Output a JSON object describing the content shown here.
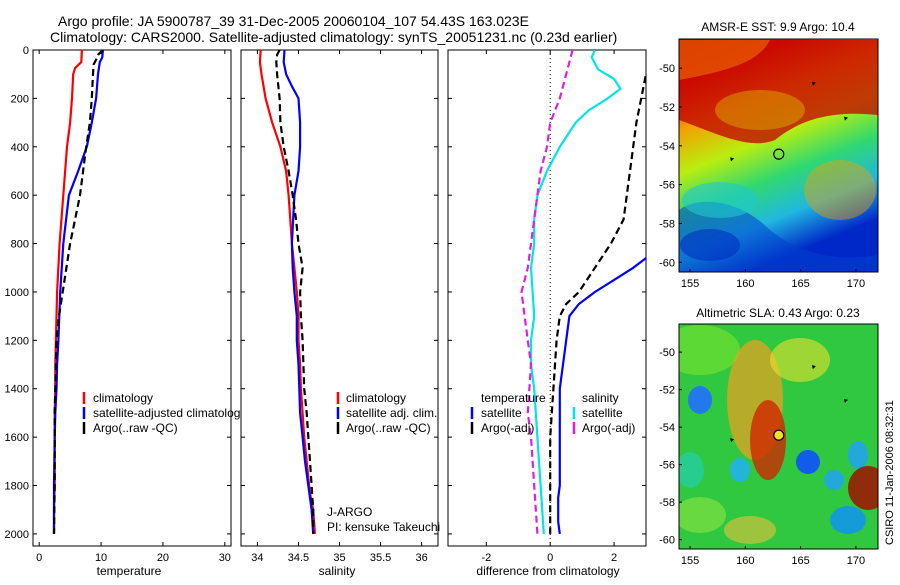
{
  "header": {
    "line1": "Argo profile: JA 5900787_39 31-Dec-2005 20060104_107 54.43S 163.023E",
    "line2": "Climatology: CARS2000. Satellite-adjusted climatology: synTS_20051231.nc (0.23d earlier)"
  },
  "side_credit": "CSIRO 11-Jan-2006 08:32:31",
  "colors": {
    "climatology": "#ff0000",
    "satellite": "#0000ff",
    "argo": "#000000",
    "salinity_satellite": "#00e5e5",
    "salinity_argo": "#e01ee0"
  },
  "chart_data": [
    {
      "type": "line",
      "panel": "temperature",
      "xlabel": "temperature",
      "ylabel": "",
      "xlim": [
        -1,
        31
      ],
      "ylim": [
        2050,
        0
      ],
      "yticks": [
        0,
        200,
        400,
        600,
        800,
        1000,
        1200,
        1400,
        1600,
        1800,
        2000
      ],
      "xticks": [
        0,
        10,
        20,
        30
      ],
      "legend": [
        "climatology",
        "satellite-adjusted climatology",
        "Argo(..raw -QC)"
      ],
      "legend_visible": [
        "climatology",
        "satellite-adjusted climatolog",
        "Argo(..raw -QC)"
      ],
      "series": [
        {
          "name": "climatology",
          "style": "solid",
          "color": "#ff0000",
          "x": [
            6.9,
            6.8,
            5.8,
            5.5,
            5.3,
            5.0,
            4.5,
            3.9,
            3.3,
            2.9,
            2.7,
            2.6,
            2.6,
            2.5,
            2.5,
            2.5,
            2.4,
            2.4
          ],
          "y": [
            0,
            50,
            75,
            100,
            200,
            300,
            400,
            600,
            800,
            1000,
            1200,
            1300,
            1400,
            1500,
            1600,
            1800,
            1900,
            2000
          ]
        },
        {
          "name": "satellite-adjusted climatology",
          "style": "solid",
          "color": "#0000ff",
          "x": [
            10.3,
            10.2,
            9.8,
            9.5,
            9.2,
            8.5,
            7.7,
            6.3,
            4.8,
            3.9,
            3.4,
            3.1,
            2.9,
            2.8,
            2.6,
            2.5,
            2.4,
            2.4
          ],
          "y": [
            0,
            30,
            50,
            100,
            200,
            300,
            400,
            500,
            600,
            800,
            1000,
            1200,
            1300,
            1400,
            1500,
            1600,
            1800,
            2000
          ]
        },
        {
          "name": "Argo(..raw -QC)",
          "style": "dashed",
          "color": "#000000",
          "x": [
            10.3,
            9.5,
            9.2,
            8.8,
            8.7,
            8.5,
            8.2,
            7.6,
            7.1,
            6.6,
            5.8,
            5.0,
            4.4,
            3.8,
            3.2,
            2.8,
            2.7,
            2.6,
            2.5,
            2.5,
            2.5,
            2.4
          ],
          "y": [
            0,
            20,
            40,
            60,
            100,
            200,
            300,
            400,
            500,
            600,
            700,
            800,
            900,
            1000,
            1100,
            1200,
            1300,
            1400,
            1500,
            1600,
            1800,
            2000
          ]
        }
      ]
    },
    {
      "type": "line",
      "panel": "salinity",
      "xlabel": "salinity",
      "ylabel": "",
      "xlim": [
        33.8,
        36.2
      ],
      "ylim": [
        2050,
        0
      ],
      "xticks": [
        34,
        34.5,
        35,
        35.5,
        36
      ],
      "legend": [
        "climatology",
        "satellite adj. clim.",
        "Argo(..raw -QC)"
      ],
      "annotation_line1": "J-ARGO",
      "annotation_line2": "PI: kensuke Takeuchi",
      "series": [
        {
          "name": "climatology",
          "style": "solid",
          "color": "#ff0000",
          "x": [
            34.04,
            34.03,
            34.05,
            34.1,
            34.18,
            34.28,
            34.35,
            34.38,
            34.4,
            34.42,
            34.45,
            34.48,
            34.5,
            34.5,
            34.52,
            34.53,
            34.55,
            34.57,
            34.6,
            34.63,
            34.65,
            34.68,
            34.7
          ],
          "y": [
            0,
            50,
            100,
            200,
            300,
            400,
            500,
            600,
            700,
            800,
            900,
            1000,
            1100,
            1200,
            1300,
            1400,
            1500,
            1600,
            1700,
            1800,
            1850,
            1900,
            2000
          ]
        },
        {
          "name": "satellite adj. clim.",
          "style": "solid",
          "color": "#0000ff",
          "x": [
            34.33,
            34.32,
            34.35,
            34.42,
            34.5,
            34.52,
            34.52,
            34.5,
            34.45,
            34.42,
            34.43,
            34.45,
            34.48,
            34.48,
            34.5,
            34.51,
            34.52,
            34.55,
            34.58,
            34.62,
            34.66,
            34.68
          ],
          "y": [
            0,
            50,
            100,
            150,
            200,
            300,
            400,
            500,
            600,
            800,
            900,
            1000,
            1100,
            1200,
            1300,
            1400,
            1500,
            1600,
            1700,
            1800,
            1900,
            2000
          ]
        },
        {
          "name": "Argo(..raw -QC)",
          "style": "dashed",
          "color": "#000000",
          "x": [
            34.27,
            34.24,
            34.23,
            34.24,
            34.27,
            34.28,
            34.32,
            34.38,
            34.43,
            34.47,
            34.5,
            34.55,
            34.52,
            34.53,
            34.55,
            34.56,
            34.57,
            34.6,
            34.62,
            34.64,
            34.66,
            34.68,
            34.68
          ],
          "y": [
            0,
            20,
            50,
            100,
            200,
            300,
            400,
            500,
            600,
            700,
            800,
            900,
            1000,
            1100,
            1200,
            1300,
            1400,
            1500,
            1600,
            1700,
            1800,
            1900,
            2000
          ]
        }
      ]
    },
    {
      "type": "line",
      "panel": "difference",
      "xlabel": "difference from climatology",
      "ylabel": "",
      "xlim": [
        -3.2,
        3
      ],
      "ylim": [
        2050,
        0
      ],
      "xticks": [
        -2,
        0,
        2
      ],
      "legend_temperature": {
        "title": "temperature",
        "items": [
          "satellite",
          "Argo(-adj)"
        ]
      },
      "legend_salinity": {
        "title": "salinity",
        "items": [
          "satellite",
          "Argo(-adj)"
        ]
      },
      "zero_line": 0,
      "series": [
        {
          "name": "temperature satellite",
          "style": "solid",
          "color": "#0000ff",
          "x": [
            3.3,
            3.1,
            2.6,
            2.0,
            1.4,
            0.9,
            0.6,
            0.5,
            0.4,
            0.3,
            0.3,
            0.3,
            0.3,
            0.3,
            0.3,
            0.25,
            0.25,
            0.25,
            0.3
          ],
          "y": [
            800,
            850,
            900,
            950,
            1000,
            1050,
            1100,
            1200,
            1300,
            1400,
            1500,
            1550,
            1600,
            1700,
            1800,
            1850,
            1900,
            1950,
            2000
          ]
        },
        {
          "name": "temperature Argo(-adj)",
          "style": "dashed",
          "color": "#000000",
          "x": [
            3.6,
            3.0,
            2.7,
            2.5,
            2.4,
            2.3,
            1.9,
            1.4,
            0.9,
            0.5,
            0.3,
            0.2,
            0.15,
            0.1,
            0.05,
            0.0,
            0.0,
            0.0,
            0.0
          ],
          "y": [
            0,
            100,
            300,
            500,
            600,
            700,
            800,
            900,
            1000,
            1050,
            1100,
            1200,
            1300,
            1400,
            1500,
            1600,
            1800,
            1900,
            2000
          ]
        },
        {
          "name": "salinity satellite",
          "style": "solid",
          "color": "#00e5e5",
          "x": [
            1.4,
            1.3,
            1.5,
            2.0,
            2.2,
            1.8,
            1.2,
            0.8,
            0.3,
            -0.1,
            -0.4,
            -0.5,
            -0.5,
            -0.6,
            -0.55,
            -0.5,
            -0.6,
            -0.6,
            -0.5,
            -0.45,
            -0.4,
            -0.3,
            -0.2
          ],
          "y": [
            0,
            30,
            80,
            120,
            160,
            200,
            250,
            300,
            400,
            500,
            600,
            700,
            800,
            900,
            1000,
            1100,
            1200,
            1300,
            1400,
            1500,
            1600,
            1800,
            2000
          ]
        },
        {
          "name": "salinity Argo(-adj)",
          "style": "dashed",
          "color": "#e01ee0",
          "x": [
            0.7,
            0.6,
            0.5,
            0.3,
            0.0,
            -0.1,
            -0.3,
            -0.4,
            -0.5,
            -0.6,
            -0.7,
            -0.9,
            -0.8,
            -0.7,
            -0.6,
            -0.65,
            -0.7,
            -0.6,
            -0.55,
            -0.5,
            -0.45,
            -0.4
          ],
          "y": [
            0,
            50,
            100,
            200,
            300,
            400,
            500,
            600,
            700,
            800,
            900,
            1000,
            1100,
            1200,
            1300,
            1400,
            1500,
            1600,
            1700,
            1800,
            1900,
            2000
          ]
        }
      ]
    },
    {
      "type": "heatmap",
      "panel": "sst-map",
      "title": "AMSR-E SST: 9.9 Argo: 10.4",
      "xlim": [
        154,
        172
      ],
      "ylim": [
        -60.5,
        -48.5
      ],
      "xticks": [
        155,
        160,
        165,
        170
      ],
      "yticks": [
        -50,
        -52,
        -54,
        -56,
        -58,
        -60
      ],
      "argo_position": {
        "lon": 163.023,
        "lat": -54.43
      },
      "other_floats": [
        {
          "lon": 166.2,
          "lat": -50.8
        },
        {
          "lon": 169.1,
          "lat": -52.6
        },
        {
          "lon": 158.8,
          "lat": -54.7
        }
      ]
    },
    {
      "type": "heatmap",
      "panel": "sla-map",
      "title": "Altimetric SLA: 0.43 Argo: 0.23",
      "xlim": [
        154,
        172
      ],
      "ylim": [
        -60.5,
        -48.5
      ],
      "xticks": [
        155,
        160,
        165,
        170
      ],
      "yticks": [
        -50,
        -52,
        -54,
        -56,
        -58,
        -60
      ],
      "argo_position": {
        "lon": 163.023,
        "lat": -54.43
      },
      "other_floats": [
        {
          "lon": 166.2,
          "lat": -50.8
        },
        {
          "lon": 169.1,
          "lat": -52.6
        },
        {
          "lon": 158.8,
          "lat": -54.7
        }
      ]
    }
  ]
}
